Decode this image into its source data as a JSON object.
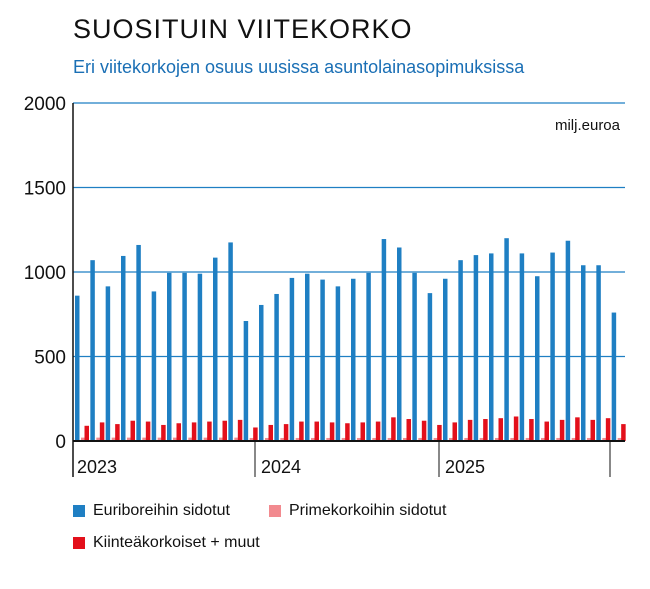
{
  "chart_data": {
    "type": "bar",
    "title": "SUOSITUIN VIITEKORKO",
    "subtitle": "Eri viitekorkojen osuus uusissa asuntolainasopimuksissa",
    "unit": "milj.euroa",
    "ylim": [
      0,
      2000
    ],
    "yticks": [
      "0",
      "500",
      "1000",
      "1500",
      "2000"
    ],
    "year_labels": [
      "2023",
      "2024",
      "2025"
    ],
    "grid": true,
    "legend_position": "bottom",
    "series": [
      {
        "name": "Euriboreihin sidotut",
        "color": "#1f7fc3",
        "values": [
          860,
          1070,
          915,
          1095,
          1160,
          885,
          995,
          995,
          990,
          1085,
          1175,
          710,
          805,
          870,
          965,
          990,
          955,
          915,
          960,
          995,
          1195,
          1145,
          995,
          875,
          960,
          1070,
          1100,
          1110,
          1200,
          1110,
          975,
          1115,
          1185,
          1040,
          1040,
          760
        ]
      },
      {
        "name": "Primekorkoihin sidotut",
        "color": "#f28a8f",
        "values": [
          20,
          20,
          20,
          20,
          20,
          20,
          20,
          20,
          20,
          20,
          20,
          18,
          18,
          18,
          18,
          18,
          18,
          18,
          18,
          18,
          18,
          18,
          18,
          18,
          18,
          18,
          18,
          18,
          18,
          18,
          18,
          18,
          18,
          18,
          18,
          18
        ]
      },
      {
        "name": "Kiinteäkorkoiset + muut",
        "color": "#e3101b",
        "values": [
          90,
          110,
          100,
          120,
          115,
          95,
          105,
          110,
          115,
          120,
          125,
          80,
          95,
          100,
          115,
          115,
          110,
          105,
          110,
          115,
          140,
          130,
          120,
          95,
          110,
          125,
          130,
          135,
          145,
          130,
          115,
          125,
          140,
          125,
          135,
          100
        ]
      }
    ]
  }
}
